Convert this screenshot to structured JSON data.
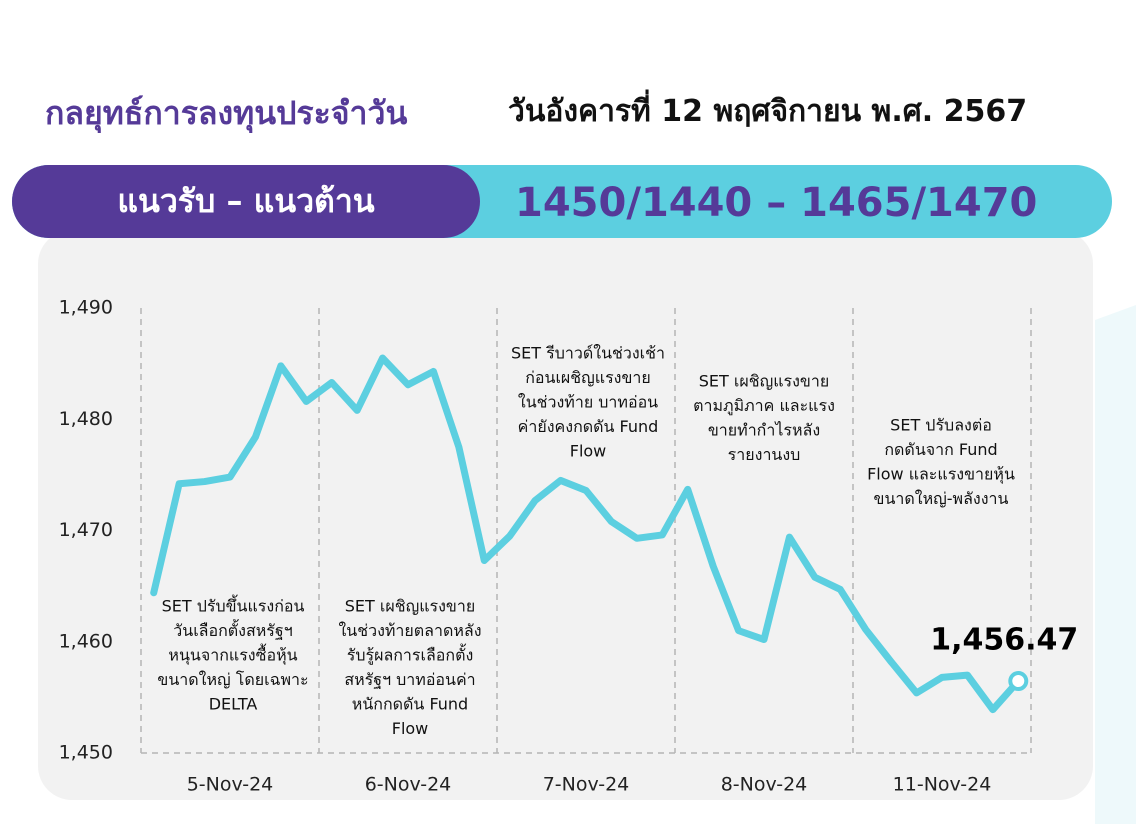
{
  "header": {
    "title": "กลยุทธ์การลงทุนประจำวัน",
    "date": "วันอังคารที่ 12 พฤศจิกายน พ.ศ. 2567"
  },
  "banner": {
    "label": "แนวรับ – แนวต้าน",
    "levels": "1450/1440 – 1465/1470"
  },
  "chart_data": {
    "type": "line",
    "categories": [
      null,
      null,
      null,
      "5-Nov-24",
      null,
      null,
      null,
      null,
      null,
      null,
      "6-Nov-24",
      null,
      null,
      null,
      null,
      null,
      null,
      "7-Nov-24",
      null,
      null,
      null,
      null,
      null,
      null,
      "8-Nov-24",
      null,
      null,
      null,
      null,
      null,
      null,
      "11-Nov-24",
      null,
      null,
      null
    ],
    "series": [
      {
        "color": "#5ccfe0",
        "values": [
          1464.4,
          1474.2,
          1474.4,
          1474.8,
          1478.4,
          1484.8,
          1481.6,
          1483.3,
          1480.8,
          1485.5,
          1483.1,
          1484.3,
          1477.5,
          1467.3,
          1469.5,
          1472.7,
          1474.5,
          1473.6,
          1470.8,
          1469.3,
          1469.6,
          1473.7,
          1466.8,
          1461.0,
          1460.2,
          1469.4,
          1465.8,
          1464.7,
          1461.1,
          1458.2,
          1455.4,
          1456.8,
          1457.0,
          1453.9,
          1456.47
        ],
        "value_labels": [
          null,
          null,
          null,
          null,
          null,
          null,
          null,
          null,
          null,
          null,
          null,
          null,
          null,
          null,
          null,
          null,
          null,
          null,
          null,
          null,
          null,
          null,
          null,
          null,
          null,
          null,
          null,
          null,
          null,
          null,
          null,
          null,
          null,
          null,
          "1,456.47"
        ]
      }
    ],
    "ylim": [
      1450,
      1490
    ],
    "yticks": [
      {
        "value": 1450,
        "label": "1,450"
      },
      {
        "value": 1460,
        "label": "1,460"
      },
      {
        "value": 1470,
        "label": "1,470"
      },
      {
        "value": 1480,
        "label": "1,480"
      },
      {
        "value": 1490,
        "label": "1,490"
      }
    ],
    "grid": false,
    "annotations": [
      {
        "lines": [
          "SET ปรับขึ้นแรงก่อน",
          "วันเลือกตั้งสหรัฐฯ",
          "หนุนจากแรงซื้อหุ้น",
          "ขนาดใหญ่ โดยเฉพาะ",
          "DELTA"
        ]
      },
      {
        "lines": [
          "SET เผชิญแรงขาย",
          "ในช่วงท้ายตลาดหลัง",
          "รับรู้ผลการเลือกตั้ง",
          "สหรัฐฯ บาทอ่อนค่า",
          "หนักกดดัน Fund",
          "Flow"
        ]
      },
      {
        "lines": [
          "SET รีบาวด์ในช่วงเช้า",
          "ก่อนเผชิญแรงขาย",
          "ในช่วงท้าย บาทอ่อน",
          "ค่ายังคงกดดัน Fund",
          "Flow"
        ]
      },
      {
        "lines": [
          "SET เผชิญแรงขาย",
          "ตามภูมิภาค และแรง",
          "ขายทำกำไรหลัง",
          "รายงานงบ"
        ]
      },
      {
        "lines": [
          "SET ปรับลงต่อ",
          "กดดันจาก Fund",
          "Flow และแรงขายหุ้น",
          "ขนาดใหญ่-พลังงาน"
        ]
      }
    ]
  }
}
